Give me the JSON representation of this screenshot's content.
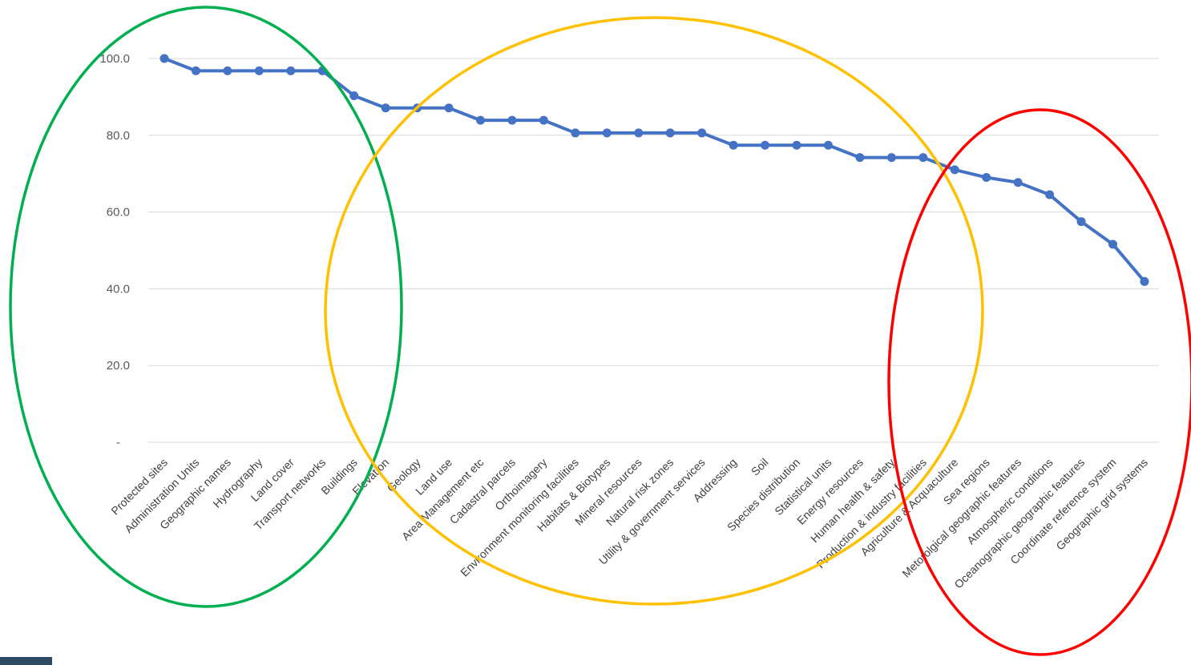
{
  "chart_data": {
    "type": "line",
    "title": "",
    "xlabel": "",
    "ylabel": "",
    "ylim": [
      0,
      100
    ],
    "yticks": [
      "-",
      "20.0",
      "40.0",
      "60.0",
      "80.0",
      "100.0"
    ],
    "grid": true,
    "legend": "none",
    "categories": [
      "Protected sites",
      "Administration Units",
      "Geographic names",
      "Hydrography",
      "Land cover",
      "Transport networks",
      "Buildings",
      "Elevation",
      "Geology",
      "Land use",
      "Area Management etc",
      "Cadastral parcels",
      "Orthoimagery",
      "Environment monitoring facilities",
      "Habitats & Biotypes",
      "Mineral resources",
      "Natural risk zones",
      "Utility & government services",
      "Addressing",
      "Soil",
      "Species distribution",
      "Statistical units",
      "Energy resources",
      "Human health & safety",
      "Production & industry facilities",
      "Agriculture & Acquaculture",
      "Sea regions",
      "Metorolgical geographic features",
      "Atmospheric conditions",
      "Oceanographic geographic features",
      "Coordinate reference system",
      "Geographic grid systems"
    ],
    "series": [
      {
        "color": "#4472c4",
        "values": [
          100.0,
          96.8,
          96.8,
          96.8,
          96.8,
          96.8,
          90.3,
          87.1,
          87.1,
          87.1,
          83.9,
          83.9,
          83.9,
          80.6,
          80.6,
          80.6,
          80.6,
          80.6,
          77.4,
          77.4,
          77.4,
          77.4,
          74.2,
          74.2,
          74.2,
          71.0,
          69.0,
          67.7,
          64.5,
          57.5,
          51.6,
          41.9
        ]
      }
    ],
    "annotations": [
      {
        "shape": "ellipse",
        "color": "#00b050"
      },
      {
        "shape": "ellipse",
        "color": "#ffc000"
      },
      {
        "shape": "ellipse",
        "color": "#ff0000"
      }
    ],
    "corner_block_color": "#2e4a62"
  }
}
